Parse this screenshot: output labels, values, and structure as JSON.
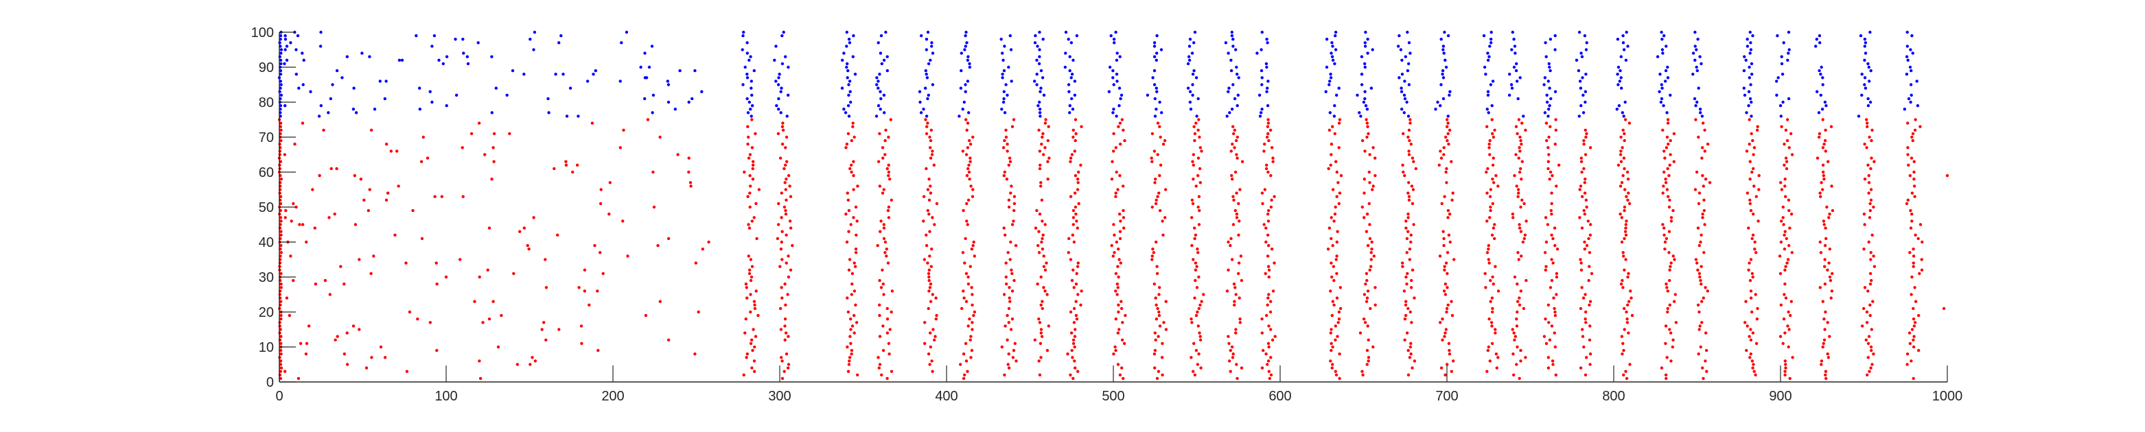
{
  "chart_data": {
    "type": "scatter",
    "title": "",
    "xlabel": "",
    "ylabel": "",
    "xlim": [
      0,
      1000
    ],
    "ylim": [
      0,
      100
    ],
    "x_ticks": [
      0,
      100,
      200,
      300,
      400,
      500,
      600,
      700,
      800,
      900,
      1000
    ],
    "y_ticks": [
      0,
      10,
      20,
      30,
      40,
      50,
      60,
      70,
      80,
      90,
      100
    ],
    "grid": false,
    "legend": "none",
    "series": [
      {
        "color": "#ff0000",
        "neurons": [
          1,
          75
        ]
      },
      {
        "color": "#0000ff",
        "neurons": [
          76,
          100
        ]
      }
    ],
    "population_burst_times": [
      283,
      303,
      343,
      363,
      390,
      413,
      437,
      457,
      477,
      503,
      527,
      550,
      573,
      593,
      633,
      653,
      677,
      700,
      727,
      743,
      763,
      783,
      807,
      833,
      853,
      883,
      903,
      927,
      953,
      980
    ],
    "early_irregular_period": [
      0,
      260
    ],
    "initial_input_time": 0,
    "isolated_late_spikes": [
      {
        "x": 1000,
        "y": 59
      },
      {
        "x": 998,
        "y": 21
      }
    ]
  }
}
